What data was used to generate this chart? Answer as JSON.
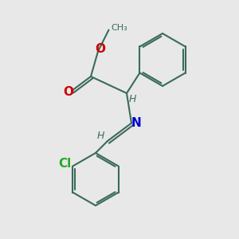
{
  "bg_color": "#e8e8e8",
  "bond_color": "#3a6b5a",
  "atom_colors": {
    "O": "#cc0000",
    "N": "#0000cc",
    "Cl": "#22aa22",
    "H": "#3a6b5a",
    "C": "#3a6b5a"
  },
  "figsize": [
    3.0,
    3.0
  ],
  "dpi": 100
}
